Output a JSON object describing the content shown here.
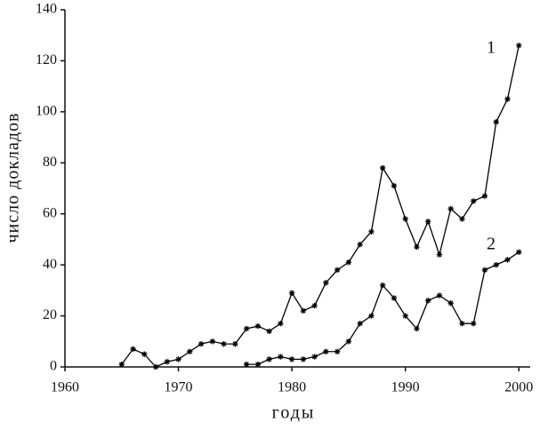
{
  "chart_data": {
    "type": "line",
    "x_label": "годы",
    "y_label": "число докладов",
    "x": [
      1965,
      1966,
      1967,
      1968,
      1969,
      1970,
      1971,
      1972,
      1973,
      1974,
      1975,
      1976,
      1977,
      1978,
      1979,
      1980,
      1981,
      1982,
      1983,
      1984,
      1985,
      1986,
      1987,
      1988,
      1989,
      1990,
      1991,
      1992,
      1993,
      1994,
      1995,
      1996,
      1997,
      1998,
      1999,
      2000
    ],
    "series": [
      {
        "color": "#000000",
        "values": [
          1,
          7,
          5,
          0,
          2,
          3,
          6,
          9,
          10,
          9,
          9,
          15,
          16,
          14,
          17,
          29,
          22,
          24,
          33,
          38,
          41,
          48,
          53,
          78,
          71,
          58,
          47,
          57,
          44,
          62,
          58,
          65,
          67,
          96,
          105,
          126
        ]
      },
      {
        "color": "#000000",
        "values": [
          null,
          null,
          null,
          null,
          null,
          null,
          null,
          null,
          null,
          null,
          null,
          1,
          1,
          3,
          4,
          3,
          3,
          4,
          6,
          6,
          10,
          17,
          20,
          32,
          27,
          20,
          15,
          26,
          28,
          25,
          17,
          17,
          38,
          40,
          42,
          45
        ]
      }
    ],
    "annotations": [
      "1",
      "2"
    ],
    "xlim": [
      1960,
      2001
    ],
    "ylim": [
      0,
      140
    ],
    "xticks": [
      1960,
      1970,
      1980,
      1990,
      2000
    ],
    "yticks": [
      0,
      20,
      40,
      60,
      80,
      100,
      120,
      140
    ]
  }
}
